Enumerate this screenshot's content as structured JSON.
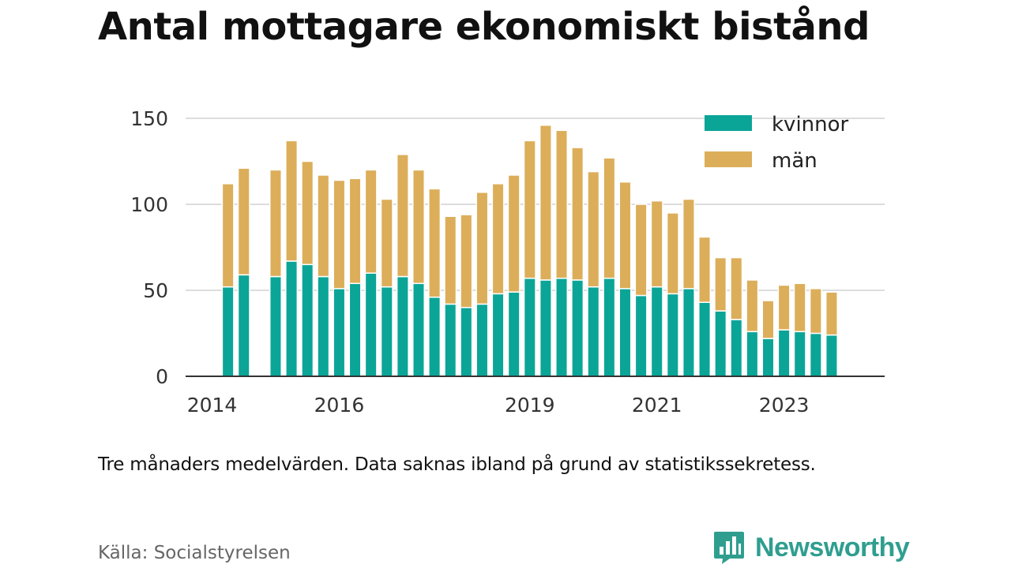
{
  "title": "Antal mottagare ekonomiskt bistånd",
  "note": "Tre månaders medelvärden. Data saknas ibland på grund av statistikssekretess.",
  "source": "Källa: Socialstyrelsen",
  "brand": {
    "name": "Newsworthy",
    "icon": "newsworthy-logo-icon"
  },
  "colors": {
    "kvinnor": "#0ba597",
    "man": "#dcae5a",
    "grid": "#dddddd",
    "axis": "#333333"
  },
  "chart_data": {
    "type": "bar",
    "stacked": true,
    "grid": true,
    "legend_position": "top-right",
    "xlim": [
      "2013-08",
      "2024-08"
    ],
    "ylim": [
      0,
      150
    ],
    "yticks": [
      0,
      50,
      100,
      150
    ],
    "xticks": [
      {
        "label": "2014",
        "x": "2014"
      },
      {
        "label": "2016",
        "x": "2016"
      },
      {
        "label": "2019",
        "x": "2019"
      },
      {
        "label": "2021",
        "x": "2021"
      },
      {
        "label": "2023",
        "x": "2023"
      }
    ],
    "x": [
      "2014-04",
      "2014-07",
      "2015-01",
      "2015-04",
      "2015-07",
      "2015-10",
      "2016-01",
      "2016-04",
      "2016-07",
      "2016-10",
      "2017-01",
      "2017-04",
      "2017-07",
      "2017-10",
      "2018-01",
      "2018-04",
      "2018-07",
      "2018-10",
      "2019-01",
      "2019-04",
      "2019-07",
      "2019-10",
      "2020-01",
      "2020-04",
      "2020-07",
      "2020-10",
      "2021-01",
      "2021-04",
      "2021-07",
      "2021-10",
      "2022-01",
      "2022-04",
      "2022-07",
      "2022-10",
      "2023-01",
      "2023-04",
      "2023-07",
      "2023-10"
    ],
    "series": [
      {
        "name": "kvinnor",
        "values": [
          52,
          59,
          58,
          67,
          65,
          58,
          51,
          54,
          60,
          52,
          58,
          54,
          46,
          42,
          40,
          42,
          48,
          49,
          57,
          56,
          57,
          56,
          52,
          57,
          51,
          47,
          52,
          48,
          51,
          43,
          38,
          33,
          26,
          22,
          27,
          26,
          25,
          24
        ]
      },
      {
        "name": "män",
        "values": [
          60,
          62,
          62,
          70,
          60,
          59,
          63,
          61,
          60,
          51,
          71,
          66,
          63,
          51,
          54,
          65,
          64,
          68,
          80,
          90,
          86,
          77,
          67,
          70,
          62,
          53,
          50,
          47,
          52,
          38,
          31,
          36,
          30,
          22,
          26,
          28,
          26,
          25
        ]
      }
    ]
  }
}
